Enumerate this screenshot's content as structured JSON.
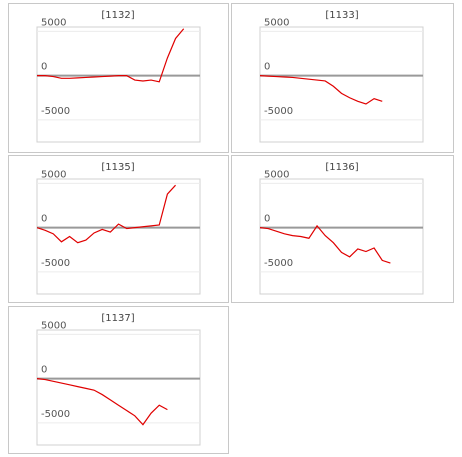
{
  "chart_data": [
    {
      "type": "line",
      "title": "[1132]",
      "color": "#e00000",
      "ylim": [
        -7500,
        5500
      ],
      "yticks": [
        -5000,
        0,
        5000
      ],
      "grid": true,
      "values": [
        0,
        0,
        -100,
        -300,
        -300,
        -250,
        -200,
        -150,
        -100,
        -50,
        0,
        0,
        -500,
        -600,
        -500,
        -700,
        2000,
        4200,
        5300
      ]
    },
    {
      "type": "line",
      "title": "[1133]",
      "color": "#e00000",
      "ylim": [
        -7500,
        5500
      ],
      "yticks": [
        -5000,
        0,
        5000
      ],
      "grid": true,
      "values": [
        0,
        -50,
        -100,
        -150,
        -200,
        -300,
        -400,
        -500,
        -600,
        -1200,
        -2000,
        -2500,
        -2900,
        -3200,
        -2600,
        -2900
      ]
    },
    {
      "type": "line",
      "title": "[1135]",
      "color": "#e00000",
      "ylim": [
        -7500,
        5500
      ],
      "yticks": [
        -5000,
        0,
        5000
      ],
      "grid": true,
      "values": [
        0,
        -300,
        -700,
        -1600,
        -1000,
        -1700,
        -1400,
        -600,
        -200,
        -500,
        400,
        -100,
        0,
        100,
        200,
        300,
        3800,
        4800
      ]
    },
    {
      "type": "line",
      "title": "[1136]",
      "color": "#e00000",
      "ylim": [
        -7500,
        5500
      ],
      "yticks": [
        -5000,
        0,
        5000
      ],
      "grid": true,
      "values": [
        0,
        -100,
        -400,
        -700,
        -900,
        -1000,
        -1200,
        200,
        -900,
        -1700,
        -2800,
        -3300,
        -2400,
        -2700,
        -2300,
        -3700,
        -4000
      ]
    },
    {
      "type": "line",
      "title": "[1137]",
      "color": "#e00000",
      "ylim": [
        -7500,
        5500
      ],
      "yticks": [
        -5000,
        0,
        5000
      ],
      "grid": true,
      "values": [
        0,
        -100,
        -300,
        -500,
        -700,
        -900,
        -1100,
        -1300,
        -1800,
        -2400,
        -3000,
        -3600,
        -4200,
        -5200,
        -3900,
        -3000,
        -3500
      ]
    }
  ]
}
